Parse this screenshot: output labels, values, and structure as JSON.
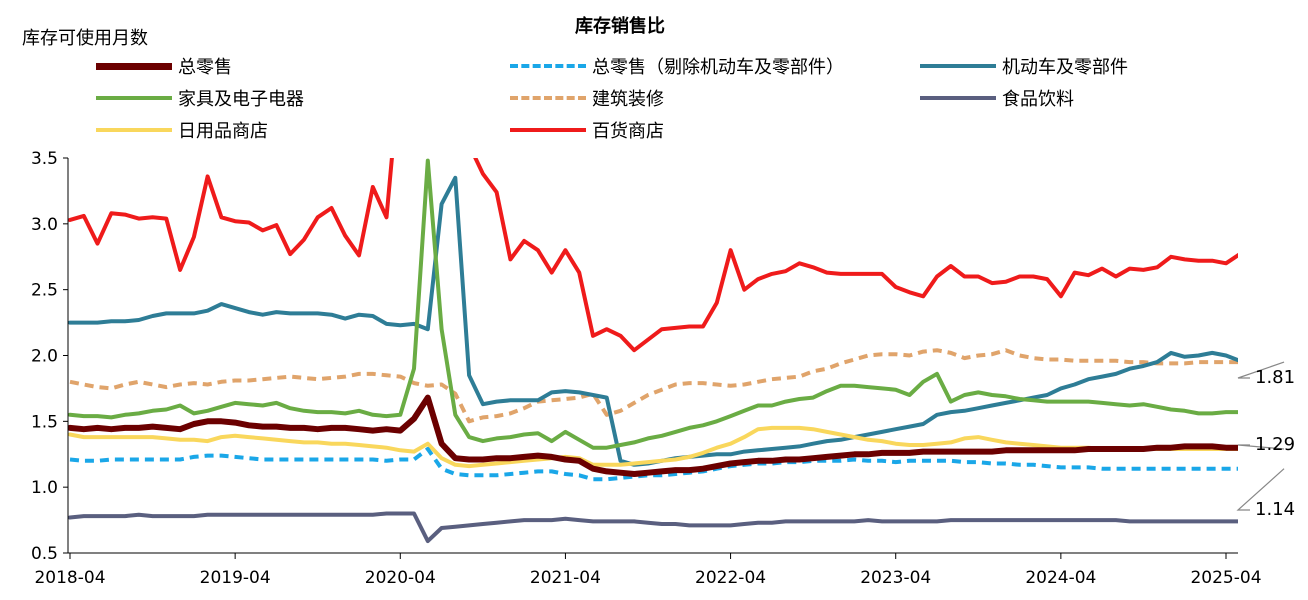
{
  "chart_data": {
    "type": "line",
    "title": "库存销售比",
    "ylabel": "库存可使用月数",
    "ylim": [
      0.5,
      3.5
    ],
    "y_ticks": [
      "0.5",
      "1.0",
      "1.5",
      "2.0",
      "2.5",
      "3.0",
      "3.5"
    ],
    "x_ticks": [
      "2018-04",
      "2019-04",
      "2020-04",
      "2021-04",
      "2022-04",
      "2023-04",
      "2024-04",
      "2025-04"
    ],
    "x_start": "2018-04",
    "grid": false,
    "legend_position": "top",
    "end_labels": [
      {
        "text": "1.81",
        "value": 1.81
      },
      {
        "text": "1.29",
        "value": 1.29
      },
      {
        "text": "1.14",
        "value": 1.14
      }
    ],
    "series": [
      {
        "name": "总零售",
        "color": "#6b0000",
        "dash": "solid",
        "width": 6,
        "values": [
          1.45,
          1.44,
          1.45,
          1.44,
          1.45,
          1.45,
          1.46,
          1.45,
          1.44,
          1.48,
          1.5,
          1.5,
          1.49,
          1.47,
          1.46,
          1.46,
          1.45,
          1.45,
          1.44,
          1.45,
          1.45,
          1.44,
          1.43,
          1.44,
          1.43,
          1.52,
          1.68,
          1.33,
          1.22,
          1.21,
          1.21,
          1.22,
          1.22,
          1.23,
          1.24,
          1.23,
          1.21,
          1.2,
          1.14,
          1.12,
          1.11,
          1.1,
          1.11,
          1.12,
          1.13,
          1.13,
          1.14,
          1.16,
          1.18,
          1.19,
          1.2,
          1.2,
          1.21,
          1.21,
          1.22,
          1.23,
          1.24,
          1.25,
          1.25,
          1.26,
          1.26,
          1.26,
          1.27,
          1.27,
          1.27,
          1.27,
          1.27,
          1.27,
          1.28,
          1.28,
          1.28,
          1.28,
          1.28,
          1.28,
          1.29,
          1.29,
          1.29,
          1.29,
          1.29,
          1.3,
          1.3,
          1.31,
          1.31,
          1.31,
          1.3,
          1.3,
          1.31,
          1.31,
          1.29
        ]
      },
      {
        "name": "总零售（剔除机动车及零部件）",
        "color": "#1aa7e8",
        "dash": "dashed",
        "width": 4,
        "values": [
          1.21,
          1.2,
          1.2,
          1.21,
          1.21,
          1.21,
          1.21,
          1.21,
          1.21,
          1.23,
          1.24,
          1.24,
          1.23,
          1.22,
          1.21,
          1.21,
          1.21,
          1.21,
          1.21,
          1.21,
          1.21,
          1.21,
          1.21,
          1.2,
          1.21,
          1.21,
          1.29,
          1.14,
          1.1,
          1.09,
          1.09,
          1.09,
          1.1,
          1.11,
          1.12,
          1.12,
          1.1,
          1.09,
          1.06,
          1.06,
          1.07,
          1.08,
          1.09,
          1.09,
          1.1,
          1.11,
          1.12,
          1.14,
          1.16,
          1.17,
          1.18,
          1.18,
          1.19,
          1.19,
          1.2,
          1.2,
          1.2,
          1.21,
          1.2,
          1.2,
          1.19,
          1.2,
          1.2,
          1.2,
          1.2,
          1.19,
          1.19,
          1.18,
          1.18,
          1.17,
          1.17,
          1.16,
          1.15,
          1.15,
          1.15,
          1.14,
          1.14,
          1.14,
          1.14,
          1.14,
          1.14,
          1.14,
          1.14,
          1.14,
          1.14,
          1.14,
          1.14,
          1.14,
          1.14
        ]
      },
      {
        "name": "机动车及零部件",
        "color": "#2e7d96",
        "dash": "solid",
        "width": 4,
        "values": [
          2.25,
          2.25,
          2.25,
          2.26,
          2.26,
          2.27,
          2.3,
          2.32,
          2.32,
          2.32,
          2.34,
          2.39,
          2.36,
          2.33,
          2.31,
          2.33,
          2.32,
          2.32,
          2.32,
          2.31,
          2.28,
          2.31,
          2.3,
          2.24,
          2.23,
          2.24,
          2.2,
          3.15,
          3.35,
          1.85,
          1.63,
          1.65,
          1.66,
          1.66,
          1.66,
          1.72,
          1.73,
          1.72,
          1.7,
          1.68,
          1.2,
          1.17,
          1.18,
          1.2,
          1.22,
          1.23,
          1.24,
          1.25,
          1.25,
          1.27,
          1.28,
          1.29,
          1.3,
          1.31,
          1.33,
          1.35,
          1.36,
          1.38,
          1.4,
          1.42,
          1.44,
          1.46,
          1.48,
          1.55,
          1.57,
          1.58,
          1.6,
          1.62,
          1.64,
          1.66,
          1.68,
          1.7,
          1.75,
          1.78,
          1.82,
          1.84,
          1.86,
          1.9,
          1.92,
          1.95,
          2.02,
          1.99,
          2.0,
          2.02,
          2.0,
          1.96,
          1.88,
          1.91,
          1.95,
          1.81
        ]
      },
      {
        "name": "家具及电子电器",
        "color": "#6aac44",
        "dash": "solid",
        "width": 4,
        "values": [
          1.55,
          1.54,
          1.54,
          1.53,
          1.55,
          1.56,
          1.58,
          1.59,
          1.62,
          1.56,
          1.58,
          1.61,
          1.64,
          1.63,
          1.62,
          1.64,
          1.6,
          1.58,
          1.57,
          1.57,
          1.56,
          1.58,
          1.55,
          1.54,
          1.55,
          1.9,
          3.48,
          2.2,
          1.55,
          1.38,
          1.35,
          1.37,
          1.38,
          1.4,
          1.41,
          1.35,
          1.42,
          1.36,
          1.3,
          1.3,
          1.32,
          1.34,
          1.37,
          1.39,
          1.42,
          1.45,
          1.47,
          1.5,
          1.54,
          1.58,
          1.62,
          1.62,
          1.65,
          1.67,
          1.68,
          1.73,
          1.77,
          1.77,
          1.76,
          1.75,
          1.74,
          1.7,
          1.8,
          1.86,
          1.65,
          1.7,
          1.72,
          1.7,
          1.69,
          1.67,
          1.66,
          1.65,
          1.65,
          1.65,
          1.65,
          1.64,
          1.63,
          1.62,
          1.63,
          1.61,
          1.59,
          1.58,
          1.56,
          1.56,
          1.57,
          1.57,
          1.55,
          1.54,
          1.54,
          1.53,
          1.53
        ]
      },
      {
        "name": "建筑装修",
        "color": "#e0a46b",
        "dash": "dashed",
        "width": 4,
        "values": [
          1.8,
          1.78,
          1.76,
          1.75,
          1.78,
          1.8,
          1.78,
          1.76,
          1.78,
          1.79,
          1.78,
          1.8,
          1.81,
          1.81,
          1.82,
          1.83,
          1.84,
          1.83,
          1.82,
          1.83,
          1.84,
          1.86,
          1.86,
          1.85,
          1.84,
          1.79,
          1.77,
          1.78,
          1.71,
          1.5,
          1.53,
          1.54,
          1.56,
          1.6,
          1.65,
          1.66,
          1.67,
          1.68,
          1.71,
          1.55,
          1.58,
          1.64,
          1.7,
          1.74,
          1.78,
          1.79,
          1.79,
          1.78,
          1.77,
          1.78,
          1.8,
          1.82,
          1.83,
          1.84,
          1.88,
          1.9,
          1.94,
          1.97,
          2.0,
          2.01,
          2.01,
          2.0,
          2.03,
          2.04,
          2.02,
          1.98,
          2.0,
          2.01,
          2.04,
          2.0,
          1.98,
          1.97,
          1.97,
          1.96,
          1.96,
          1.96,
          1.96,
          1.95,
          1.95,
          1.94,
          1.94,
          1.94,
          1.95,
          1.95,
          1.95,
          1.95,
          1.96,
          1.98,
          2.04,
          2.1
        ]
      },
      {
        "name": "食品饮料",
        "color": "#5a5f7f",
        "dash": "solid",
        "width": 4,
        "values": [
          0.77,
          0.78,
          0.78,
          0.78,
          0.78,
          0.79,
          0.78,
          0.78,
          0.78,
          0.78,
          0.79,
          0.79,
          0.79,
          0.79,
          0.79,
          0.79,
          0.79,
          0.79,
          0.79,
          0.79,
          0.79,
          0.79,
          0.79,
          0.8,
          0.8,
          0.8,
          0.59,
          0.69,
          0.7,
          0.71,
          0.72,
          0.73,
          0.74,
          0.75,
          0.75,
          0.75,
          0.76,
          0.75,
          0.74,
          0.74,
          0.74,
          0.74,
          0.73,
          0.72,
          0.72,
          0.71,
          0.71,
          0.71,
          0.71,
          0.72,
          0.73,
          0.73,
          0.74,
          0.74,
          0.74,
          0.74,
          0.74,
          0.74,
          0.75,
          0.74,
          0.74,
          0.74,
          0.74,
          0.74,
          0.75,
          0.75,
          0.75,
          0.75,
          0.75,
          0.75,
          0.75,
          0.75,
          0.75,
          0.75,
          0.75,
          0.75,
          0.75,
          0.74,
          0.74,
          0.74,
          0.74,
          0.74,
          0.74,
          0.74,
          0.74,
          0.74,
          0.74,
          0.74,
          0.74
        ]
      },
      {
        "name": "日用品商店",
        "color": "#f9d75c",
        "dash": "solid",
        "width": 4,
        "values": [
          1.4,
          1.38,
          1.38,
          1.38,
          1.38,
          1.38,
          1.38,
          1.37,
          1.36,
          1.36,
          1.35,
          1.38,
          1.39,
          1.38,
          1.37,
          1.36,
          1.35,
          1.34,
          1.34,
          1.33,
          1.33,
          1.32,
          1.31,
          1.3,
          1.28,
          1.27,
          1.33,
          1.22,
          1.17,
          1.16,
          1.17,
          1.18,
          1.19,
          1.2,
          1.21,
          1.22,
          1.23,
          1.22,
          1.17,
          1.17,
          1.17,
          1.18,
          1.19,
          1.2,
          1.21,
          1.23,
          1.26,
          1.3,
          1.33,
          1.38,
          1.44,
          1.45,
          1.45,
          1.45,
          1.44,
          1.42,
          1.4,
          1.38,
          1.36,
          1.35,
          1.33,
          1.32,
          1.32,
          1.33,
          1.34,
          1.37,
          1.38,
          1.36,
          1.34,
          1.33,
          1.32,
          1.31,
          1.3,
          1.3,
          1.3,
          1.29,
          1.29,
          1.29,
          1.29,
          1.29,
          1.29,
          1.29,
          1.29,
          1.29,
          1.29,
          1.29,
          1.29,
          1.29,
          1.29
        ]
      },
      {
        "name": "百货商店",
        "color": "#ef1b1b",
        "dash": "solid",
        "width": 4,
        "values": [
          3.03,
          3.06,
          2.85,
          3.08,
          3.07,
          3.04,
          3.05,
          3.04,
          2.65,
          2.9,
          3.36,
          3.05,
          3.02,
          3.01,
          2.95,
          2.99,
          2.77,
          2.88,
          3.05,
          3.12,
          2.91,
          2.76,
          3.28,
          3.05,
          4.2,
          3.7,
          null,
          null,
          4.8,
          3.6,
          3.38,
          3.24,
          2.73,
          2.87,
          2.8,
          2.63,
          2.8,
          2.63,
          2.15,
          2.2,
          2.15,
          2.04,
          2.12,
          2.2,
          2.21,
          2.22,
          2.22,
          2.4,
          2.8,
          2.5,
          2.58,
          2.62,
          2.64,
          2.7,
          2.67,
          2.63,
          2.62,
          2.62,
          2.62,
          2.62,
          2.52,
          2.48,
          2.45,
          2.6,
          2.68,
          2.6,
          2.6,
          2.55,
          2.56,
          2.6,
          2.6,
          2.58,
          2.45,
          2.63,
          2.61,
          2.66,
          2.6,
          2.66,
          2.65,
          2.67,
          2.75,
          2.73,
          2.72,
          2.72,
          2.7,
          2.77,
          2.76,
          2.75,
          2.75
        ]
      }
    ]
  }
}
